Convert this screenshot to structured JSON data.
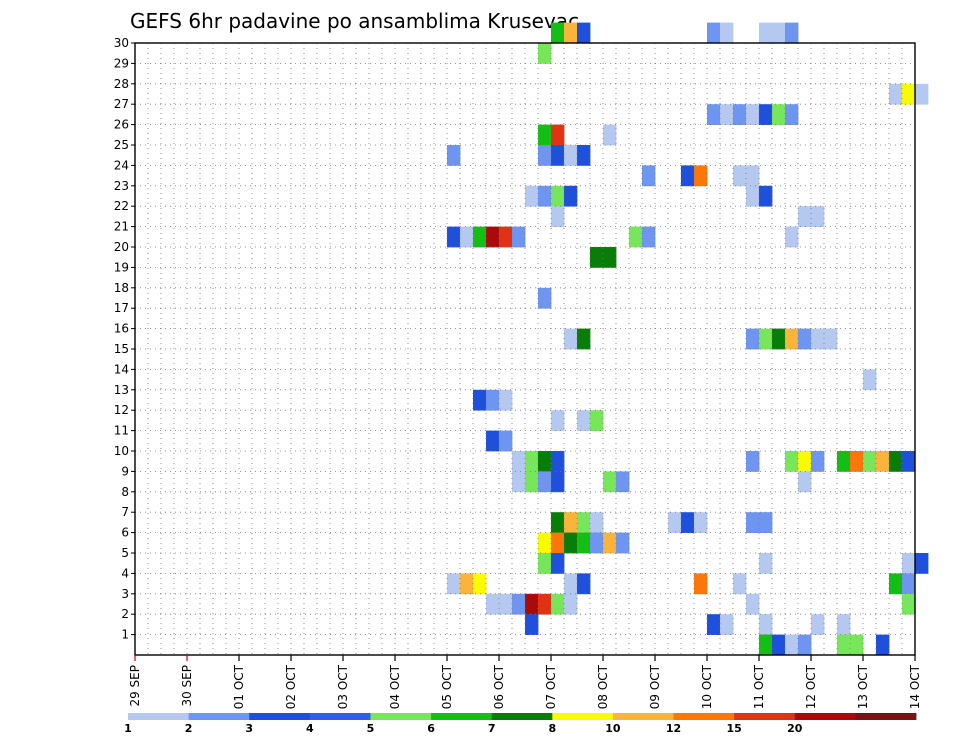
{
  "chart_data": {
    "type": "heatmap",
    "title": "GEFS 6hr padavine po ansamblima Krusevac",
    "xlabel": "",
    "ylabel": "",
    "x_range": [
      "29 SEP",
      "14 OCT"
    ],
    "x_step_hours": 6,
    "x_tick_labels": [
      "29 SEP",
      "30 SEP",
      "01 OCT",
      "02 OCT",
      "03 OCT",
      "04 OCT",
      "05 OCT",
      "06 OCT",
      "07 OCT",
      "08 OCT",
      "09 OCT",
      "10 OCT",
      "11 OCT",
      "12 OCT",
      "13 OCT",
      "14 OCT"
    ],
    "y_range": [
      0,
      30
    ],
    "y_tick_labels": [
      "1",
      "2",
      "3",
      "4",
      "5",
      "6",
      "7",
      "8",
      "9",
      "10",
      "11",
      "12",
      "13",
      "14",
      "15",
      "16",
      "17",
      "18",
      "19",
      "20",
      "21",
      "22",
      "23",
      "24",
      "25",
      "26",
      "27",
      "28",
      "29",
      "30"
    ],
    "grid": true,
    "legend_placement": "bottom",
    "legend_labels": [
      "1",
      "2",
      "3",
      "4",
      "5",
      "6",
      "7",
      "8",
      "10",
      "12",
      "15",
      "20"
    ],
    "colors": [
      "#b4c8f0",
      "#6e96f0",
      "#1e50dc",
      "#325fe6",
      "#78e65a",
      "#14be14",
      "#087d08",
      "#fafa00",
      "#fab43c",
      "#fa780a",
      "#e13214",
      "#aa0a0a",
      "#781414"
    ],
    "cells": [
      {
        "time": "07 OCT 00Z",
        "member": 30,
        "category": 6
      },
      {
        "time": "07 OCT 06Z",
        "member": 30,
        "category": 9
      },
      {
        "time": "07 OCT 12Z",
        "member": 30,
        "category": 3
      },
      {
        "time": "10 OCT 00Z",
        "member": 30,
        "category": 2
      },
      {
        "time": "10 OCT 06Z",
        "member": 30,
        "category": 1
      },
      {
        "time": "11 OCT 00Z",
        "member": 30,
        "category": 1
      },
      {
        "time": "11 OCT 06Z",
        "member": 30,
        "category": 1
      },
      {
        "time": "11 OCT 12Z",
        "member": 30,
        "category": 2
      },
      {
        "time": "06 OCT 18Z",
        "member": 29,
        "category": 5
      },
      {
        "time": "13 OCT 12Z",
        "member": 27,
        "category": 1
      },
      {
        "time": "13 OCT 18Z",
        "member": 27,
        "category": 8
      },
      {
        "time": "14 OCT 00Z",
        "member": 27,
        "category": 1
      },
      {
        "time": "10 OCT 00Z",
        "member": 26,
        "category": 2
      },
      {
        "time": "10 OCT 06Z",
        "member": 26,
        "category": 1
      },
      {
        "time": "10 OCT 12Z",
        "member": 26,
        "category": 2
      },
      {
        "time": "10 OCT 18Z",
        "member": 26,
        "category": 1
      },
      {
        "time": "11 OCT 00Z",
        "member": 26,
        "category": 3
      },
      {
        "time": "11 OCT 06Z",
        "member": 26,
        "category": 5
      },
      {
        "time": "11 OCT 12Z",
        "member": 26,
        "category": 2
      },
      {
        "time": "06 OCT 18Z",
        "member": 25,
        "category": 6
      },
      {
        "time": "07 OCT 00Z",
        "member": 25,
        "category": 11
      },
      {
        "time": "08 OCT 00Z",
        "member": 25,
        "category": 1
      },
      {
        "time": "05 OCT 00Z",
        "member": 24,
        "category": 2
      },
      {
        "time": "06 OCT 18Z",
        "member": 24,
        "category": 2
      },
      {
        "time": "07 OCT 00Z",
        "member": 24,
        "category": 3
      },
      {
        "time": "07 OCT 06Z",
        "member": 24,
        "category": 1
      },
      {
        "time": "07 OCT 12Z",
        "member": 24,
        "category": 3
      },
      {
        "time": "08 OCT 18Z",
        "member": 23,
        "category": 2
      },
      {
        "time": "09 OCT 12Z",
        "member": 23,
        "category": 3
      },
      {
        "time": "09 OCT 18Z",
        "member": 23,
        "category": 10
      },
      {
        "time": "10 OCT 12Z",
        "member": 23,
        "category": 1
      },
      {
        "time": "10 OCT 18Z",
        "member": 23,
        "category": 1
      },
      {
        "time": "06 OCT 12Z",
        "member": 22,
        "category": 1
      },
      {
        "time": "06 OCT 18Z",
        "member": 22,
        "category": 2
      },
      {
        "time": "07 OCT 00Z",
        "member": 22,
        "category": 5
      },
      {
        "time": "07 OCT 06Z",
        "member": 22,
        "category": 3
      },
      {
        "time": "10 OCT 18Z",
        "member": 22,
        "category": 1
      },
      {
        "time": "11 OCT 00Z",
        "member": 22,
        "category": 3
      },
      {
        "time": "07 OCT 00Z",
        "member": 21,
        "category": 1
      },
      {
        "time": "11 OCT 18Z",
        "member": 21,
        "category": 1
      },
      {
        "time": "12 OCT 00Z",
        "member": 21,
        "category": 1
      },
      {
        "time": "05 OCT 00Z",
        "member": 20,
        "category": 3
      },
      {
        "time": "05 OCT 06Z",
        "member": 20,
        "category": 1
      },
      {
        "time": "05 OCT 12Z",
        "member": 20,
        "category": 6
      },
      {
        "time": "05 OCT 18Z",
        "member": 20,
        "category": 12
      },
      {
        "time": "06 OCT 00Z",
        "member": 20,
        "category": 11
      },
      {
        "time": "06 OCT 06Z",
        "member": 20,
        "category": 2
      },
      {
        "time": "08 OCT 12Z",
        "member": 20,
        "category": 5
      },
      {
        "time": "08 OCT 18Z",
        "member": 20,
        "category": 2
      },
      {
        "time": "11 OCT 12Z",
        "member": 20,
        "category": 1
      },
      {
        "time": "07 OCT 18Z",
        "member": 19,
        "category": 7
      },
      {
        "time": "08 OCT 00Z",
        "member": 19,
        "category": 7
      },
      {
        "time": "06 OCT 18Z",
        "member": 17,
        "category": 2
      },
      {
        "time": "07 OCT 06Z",
        "member": 15,
        "category": 1
      },
      {
        "time": "07 OCT 12Z",
        "member": 15,
        "category": 7
      },
      {
        "time": "10 OCT 18Z",
        "member": 15,
        "category": 2
      },
      {
        "time": "11 OCT 00Z",
        "member": 15,
        "category": 5
      },
      {
        "time": "11 OCT 06Z",
        "member": 15,
        "category": 7
      },
      {
        "time": "11 OCT 12Z",
        "member": 15,
        "category": 9
      },
      {
        "time": "11 OCT 18Z",
        "member": 15,
        "category": 2
      },
      {
        "time": "12 OCT 00Z",
        "member": 15,
        "category": 1
      },
      {
        "time": "12 OCT 06Z",
        "member": 15,
        "category": 1
      },
      {
        "time": "13 OCT 00Z",
        "member": 13,
        "category": 1
      },
      {
        "time": "05 OCT 12Z",
        "member": 12,
        "category": 3
      },
      {
        "time": "05 OCT 18Z",
        "member": 12,
        "category": 2
      },
      {
        "time": "06 OCT 00Z",
        "member": 12,
        "category": 1
      },
      {
        "time": "07 OCT 00Z",
        "member": 11,
        "category": 1
      },
      {
        "time": "07 OCT 12Z",
        "member": 11,
        "category": 1
      },
      {
        "time": "07 OCT 18Z",
        "member": 11,
        "category": 5
      },
      {
        "time": "05 OCT 18Z",
        "member": 10,
        "category": 3
      },
      {
        "time": "06 OCT 00Z",
        "member": 10,
        "category": 2
      },
      {
        "time": "06 OCT 06Z",
        "member": 9,
        "category": 1
      },
      {
        "time": "06 OCT 12Z",
        "member": 9,
        "category": 5
      },
      {
        "time": "06 OCT 18Z",
        "member": 9,
        "category": 7
      },
      {
        "time": "07 OCT 00Z",
        "member": 9,
        "category": 3
      },
      {
        "time": "10 OCT 18Z",
        "member": 9,
        "category": 2
      },
      {
        "time": "11 OCT 12Z",
        "member": 9,
        "category": 5
      },
      {
        "time": "11 OCT 18Z",
        "member": 9,
        "category": 8
      },
      {
        "time": "12 OCT 00Z",
        "member": 9,
        "category": 2
      },
      {
        "time": "12 OCT 12Z",
        "member": 9,
        "category": 6
      },
      {
        "time": "12 OCT 18Z",
        "member": 9,
        "category": 10
      },
      {
        "time": "13 OCT 00Z",
        "member": 9,
        "category": 5
      },
      {
        "time": "13 OCT 06Z",
        "member": 9,
        "category": 9
      },
      {
        "time": "13 OCT 12Z",
        "member": 9,
        "category": 7
      },
      {
        "time": "13 OCT 18Z",
        "member": 9,
        "category": 3
      },
      {
        "time": "06 OCT 06Z",
        "member": 8,
        "category": 1
      },
      {
        "time": "06 OCT 12Z",
        "member": 8,
        "category": 5
      },
      {
        "time": "06 OCT 18Z",
        "member": 8,
        "category": 2
      },
      {
        "time": "07 OCT 00Z",
        "member": 8,
        "category": 3
      },
      {
        "time": "08 OCT 00Z",
        "member": 8,
        "category": 5
      },
      {
        "time": "08 OCT 06Z",
        "member": 8,
        "category": 2
      },
      {
        "time": "11 OCT 18Z",
        "member": 8,
        "category": 1
      },
      {
        "time": "07 OCT 00Z",
        "member": 6,
        "category": 7
      },
      {
        "time": "07 OCT 06Z",
        "member": 6,
        "category": 9
      },
      {
        "time": "07 OCT 12Z",
        "member": 6,
        "category": 5
      },
      {
        "time": "07 OCT 18Z",
        "member": 6,
        "category": 1
      },
      {
        "time": "09 OCT 06Z",
        "member": 6,
        "category": 1
      },
      {
        "time": "09 OCT 12Z",
        "member": 6,
        "category": 3
      },
      {
        "time": "09 OCT 18Z",
        "member": 6,
        "category": 1
      },
      {
        "time": "10 OCT 18Z",
        "member": 6,
        "category": 2
      },
      {
        "time": "11 OCT 00Z",
        "member": 6,
        "category": 2
      },
      {
        "time": "06 OCT 18Z",
        "member": 5,
        "category": 8
      },
      {
        "time": "07 OCT 00Z",
        "member": 5,
        "category": 10
      },
      {
        "time": "07 OCT 06Z",
        "member": 5,
        "category": 7
      },
      {
        "time": "07 OCT 12Z",
        "member": 5,
        "category": 6
      },
      {
        "time": "07 OCT 18Z",
        "member": 5,
        "category": 2
      },
      {
        "time": "08 OCT 00Z",
        "member": 5,
        "category": 9
      },
      {
        "time": "08 OCT 06Z",
        "member": 5,
        "category": 2
      },
      {
        "time": "06 OCT 18Z",
        "member": 4,
        "category": 5
      },
      {
        "time": "07 OCT 00Z",
        "member": 4,
        "category": 3
      },
      {
        "time": "11 OCT 00Z",
        "member": 4,
        "category": 1
      },
      {
        "time": "13 OCT 18Z",
        "member": 4,
        "category": 1
      },
      {
        "time": "14 OCT 00Z",
        "member": 4,
        "category": 3
      },
      {
        "time": "05 OCT 00Z",
        "member": 3,
        "category": 1
      },
      {
        "time": "05 OCT 06Z",
        "member": 3,
        "category": 9
      },
      {
        "time": "05 OCT 12Z",
        "member": 3,
        "category": 8
      },
      {
        "time": "07 OCT 06Z",
        "member": 3,
        "category": 1
      },
      {
        "time": "07 OCT 12Z",
        "member": 3,
        "category": 3
      },
      {
        "time": "09 OCT 18Z",
        "member": 3,
        "category": 10
      },
      {
        "time": "10 OCT 12Z",
        "member": 3,
        "category": 1
      },
      {
        "time": "13 OCT 12Z",
        "member": 3,
        "category": 6
      },
      {
        "time": "13 OCT 18Z",
        "member": 3,
        "category": 2
      },
      {
        "time": "05 OCT 18Z",
        "member": 2,
        "category": 1
      },
      {
        "time": "06 OCT 00Z",
        "member": 2,
        "category": 1
      },
      {
        "time": "06 OCT 06Z",
        "member": 2,
        "category": 2
      },
      {
        "time": "06 OCT 12Z",
        "member": 2,
        "category": 12
      },
      {
        "time": "06 OCT 18Z",
        "member": 2,
        "category": 11
      },
      {
        "time": "07 OCT 00Z",
        "member": 2,
        "category": 5
      },
      {
        "time": "07 OCT 06Z",
        "member": 2,
        "category": 1
      },
      {
        "time": "10 OCT 18Z",
        "member": 2,
        "category": 1
      },
      {
        "time": "13 OCT 18Z",
        "member": 2,
        "category": 5
      },
      {
        "time": "06 OCT 12Z",
        "member": 1,
        "category": 3
      },
      {
        "time": "10 OCT 00Z",
        "member": 1,
        "category": 3
      },
      {
        "time": "10 OCT 06Z",
        "member": 1,
        "category": 1
      },
      {
        "time": "11 OCT 00Z",
        "member": 1,
        "category": 1
      },
      {
        "time": "12 OCT 00Z",
        "member": 1,
        "category": 1
      },
      {
        "time": "12 OCT 12Z",
        "member": 1,
        "category": 1
      },
      {
        "time": "11 OCT 00Z",
        "member": 0,
        "category": 6
      },
      {
        "time": "11 OCT 06Z",
        "member": 0,
        "category": 3
      },
      {
        "time": "11 OCT 12Z",
        "member": 0,
        "category": 1
      },
      {
        "time": "11 OCT 18Z",
        "member": 0,
        "category": 2
      },
      {
        "time": "12 OCT 12Z",
        "member": 0,
        "category": 5
      },
      {
        "time": "12 OCT 18Z",
        "member": 0,
        "category": 5
      },
      {
        "time": "13 OCT 06Z",
        "member": 0,
        "category": 3
      }
    ]
  }
}
